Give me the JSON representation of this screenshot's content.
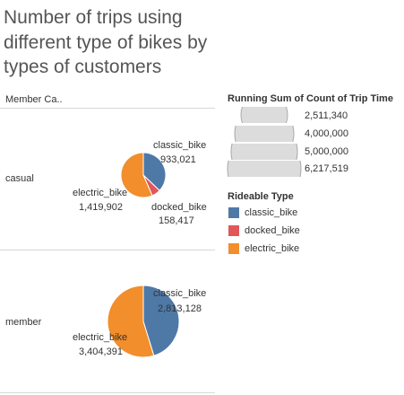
{
  "title": "Number of trips using different type of bikes by types of customers",
  "column_header": "Member Ca..",
  "size_legend": {
    "title": "Running Sum of Count of Trip Time",
    "values": [
      "2,511,340",
      "4,000,000",
      "5,000,000",
      "6,217,519"
    ]
  },
  "color_legend": {
    "title": "Rideable Type",
    "items": [
      {
        "label": "classic_bike",
        "color": "#4e79a7"
      },
      {
        "label": "docked_bike",
        "color": "#e15759"
      },
      {
        "label": "electric_bike",
        "color": "#f28e2b"
      }
    ]
  },
  "chart_data": {
    "type": "pie",
    "rows": [
      {
        "label": "casual",
        "total": 2511340,
        "slices": [
          {
            "category": "classic_bike",
            "value": 933021,
            "display": "933,021"
          },
          {
            "category": "docked_bike",
            "value": 158417,
            "display": "158,417"
          },
          {
            "category": "electric_bike",
            "value": 1419902,
            "display": "1,419,902"
          }
        ]
      },
      {
        "label": "member",
        "total": 6217519,
        "slices": [
          {
            "category": "classic_bike",
            "value": 2813128,
            "display": "2,813,128"
          },
          {
            "category": "electric_bike",
            "value": 3404391,
            "display": "3,404,391"
          }
        ]
      }
    ]
  }
}
